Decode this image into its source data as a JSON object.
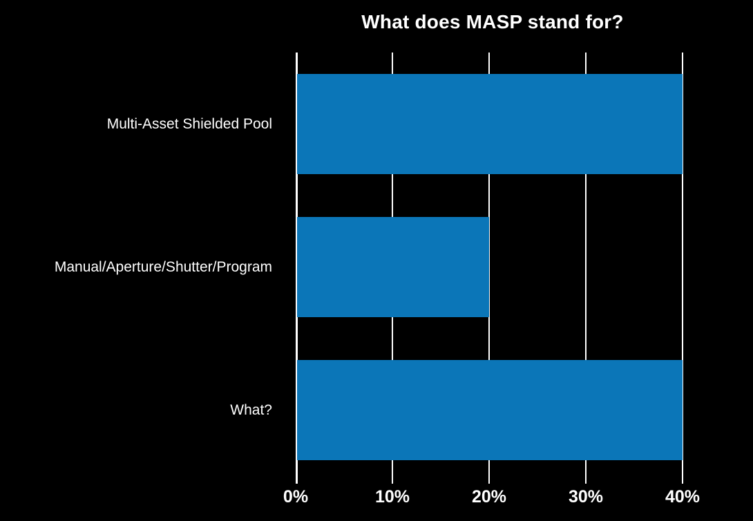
{
  "chart_data": {
    "type": "bar",
    "orientation": "horizontal",
    "title": "What does MASP stand for?",
    "categories": [
      "Multi-Asset Shielded Pool",
      "Manual/Aperture/Shutter/Program",
      "What?"
    ],
    "values": [
      40,
      20,
      40
    ],
    "value_unit": "%",
    "x_tick_labels": [
      "0%",
      "10%",
      "20%",
      "30%",
      "40%"
    ],
    "x_tick_values": [
      0,
      10,
      20,
      30,
      40
    ],
    "xlim": [
      0,
      44.4
    ],
    "xlabel": "",
    "ylabel": "",
    "grid": "vertical-white-gridlines",
    "legend": "none",
    "colors": {
      "background": "#000000",
      "bar": "#0b76b8",
      "text": "#ffffff",
      "gridline": "#ffffff"
    }
  }
}
